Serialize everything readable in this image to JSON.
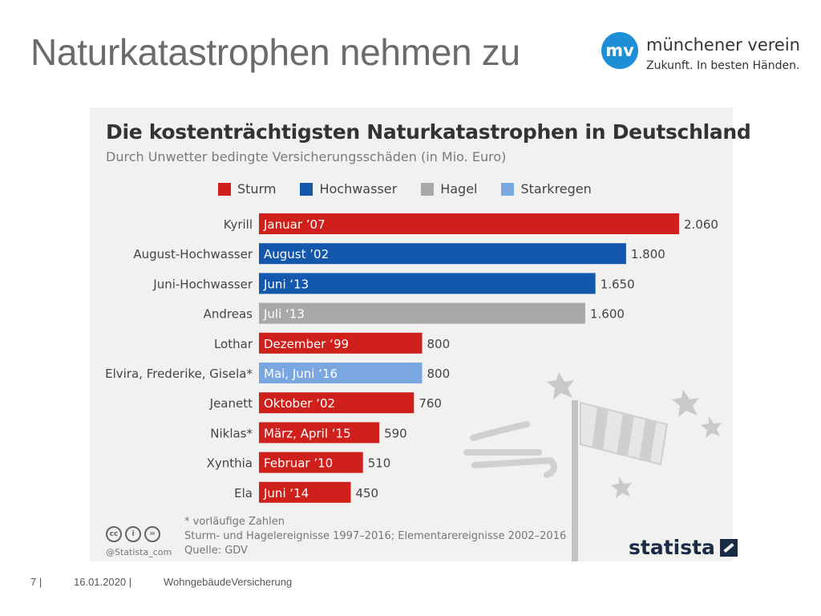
{
  "slide": {
    "title": "Naturkatastrophen nehmen zu"
  },
  "logo": {
    "mark": "mv",
    "name": "münchener verein",
    "tagline": "Zukunft. In besten Händen."
  },
  "footer": {
    "page_number": "7",
    "date": "16.01.2020",
    "topic": "WohngebäudeVersicherung"
  },
  "chart_data": {
    "type": "bar",
    "orientation": "horizontal",
    "title": "Die kostenträchtigsten Naturkatastrophen in Deutschland",
    "subtitle": "Durch Unwetter bedingte Versicherungsschäden (in Mio. Euro)",
    "legend": [
      {
        "name": "Sturm",
        "color": "#d0201c"
      },
      {
        "name": "Hochwasser",
        "color": "#1358ad"
      },
      {
        "name": "Hagel",
        "color": "#a9a9a9"
      },
      {
        "name": "Starkregen",
        "color": "#7aa7e0"
      }
    ],
    "categories": [
      "Kyrill",
      "August-Hochwasser",
      "Juni-Hochwasser",
      "Andreas",
      "Lothar",
      "Elvira, Frederike, Gisela*",
      "Jeanett",
      "Niklas*",
      "Xynthia",
      "Ela"
    ],
    "bar_labels": [
      "Januar ’07",
      "August ’02",
      "Juni ‘13",
      "Juli ‘13",
      "Dezember ‘99",
      "Mai, Juni ‘16",
      "Oktober ‘02",
      "März, April ‘15",
      "Februar ’10",
      "Juni ‘14"
    ],
    "types": [
      "Sturm",
      "Hochwasser",
      "Hochwasser",
      "Hagel",
      "Sturm",
      "Starkregen",
      "Sturm",
      "Sturm",
      "Sturm",
      "Sturm"
    ],
    "values": [
      2060,
      1800,
      1650,
      1600,
      800,
      800,
      760,
      590,
      510,
      450
    ],
    "value_labels": [
      "2.060",
      "1.800",
      "1.650",
      "1.600",
      "800",
      "800",
      "760",
      "590",
      "510",
      "450"
    ],
    "notes": [
      "* vorläufige Zahlen",
      "Sturm- und Hagelereignisse 1997–2016; Elementarereignisse 2002–2016",
      "Quelle: GDV"
    ],
    "credit": "@Statista_com",
    "brand": "statista"
  }
}
